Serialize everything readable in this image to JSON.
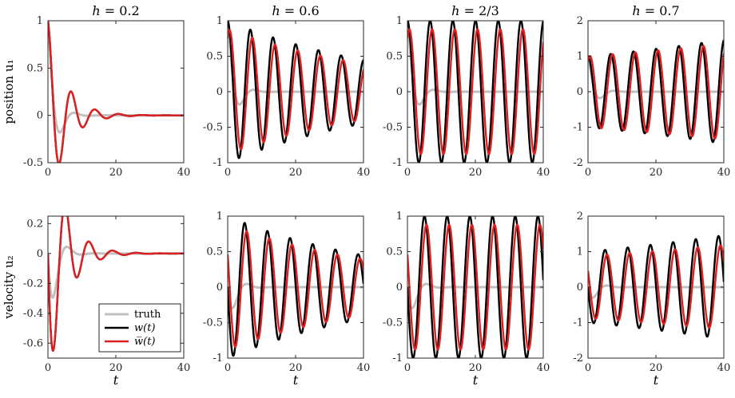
{
  "figure": {
    "row_labels": [
      "position u₁",
      "velocity u₂"
    ],
    "x_label": "t"
  },
  "legend": {
    "placement": "lower-right of bottom-left panel",
    "entries": [
      {
        "label": "truth",
        "color": "#c0c0c0"
      },
      {
        "label": "w(t)",
        "color": "#000000"
      },
      {
        "label": "w̅(t)",
        "color": "#e02020"
      }
    ]
  },
  "chart_data": [
    {
      "type": "line",
      "title": "h = 0.2",
      "xlabel": "",
      "ylabel": "position u₁",
      "xlim": [
        0,
        40
      ],
      "ylim": [
        -0.5,
        1
      ],
      "xticks": [
        0,
        20,
        40
      ],
      "yticks": [
        -0.5,
        0,
        0.5,
        1
      ],
      "yticklabels": [
        "-0.5",
        "0",
        "0.5",
        "1"
      ],
      "series": [
        {
          "name": "truth",
          "color": "#c0c0c0",
          "model": {
            "amp": 1.0,
            "decay": 0.45,
            "omega": 0.75,
            "phase": 0.0,
            "kind": "cos"
          }
        },
        {
          "name": "w(t)",
          "color": "#000000",
          "model": {
            "amp": 1.0,
            "decay": 0.2,
            "omega": 0.9,
            "phase": 0.0,
            "kind": "cos"
          }
        },
        {
          "name": "w̅(t)",
          "color": "#e02020",
          "model": {
            "amp": 1.0,
            "decay": 0.2,
            "omega": 0.9,
            "phase": 0.0,
            "kind": "cos"
          }
        }
      ]
    },
    {
      "type": "line",
      "title": "h = 0.6",
      "xlabel": "",
      "ylabel": "",
      "xlim": [
        0,
        40
      ],
      "ylim": [
        -1,
        1
      ],
      "xticks": [
        0,
        20,
        40
      ],
      "yticks": [
        -1,
        -0.5,
        0,
        0.5,
        1
      ],
      "yticklabels": [
        "-1",
        "-0.5",
        "0",
        "0.5",
        "1"
      ],
      "series": [
        {
          "name": "truth",
          "color": "#c0c0c0",
          "model": {
            "amp": 1.0,
            "decay": 0.45,
            "omega": 0.75,
            "phase": 0.0,
            "kind": "cos"
          }
        },
        {
          "name": "w(t)",
          "color": "#000000",
          "model": {
            "amp": 1.0,
            "decay": 0.02,
            "omega": 0.94,
            "phase": 0.0,
            "kind": "cos"
          }
        },
        {
          "name": "w̅(t)",
          "color": "#e02020",
          "model": {
            "amp": 1.0,
            "decay": 0.02,
            "omega": 0.94,
            "phase": 0.55,
            "kind": "cos",
            "scale": 0.88
          }
        }
      ]
    },
    {
      "type": "line",
      "title": "h = 2/3",
      "xlabel": "",
      "ylabel": "",
      "xlim": [
        0,
        40
      ],
      "ylim": [
        -1,
        1
      ],
      "xticks": [
        0,
        20,
        40
      ],
      "yticks": [
        -1,
        -0.5,
        0,
        0.5,
        1
      ],
      "yticklabels": [
        "-1",
        "-0.5",
        "0",
        "0.5",
        "1"
      ],
      "series": [
        {
          "name": "truth",
          "color": "#c0c0c0",
          "model": {
            "amp": 1.0,
            "decay": 0.45,
            "omega": 0.75,
            "phase": 0.0,
            "kind": "cos"
          }
        },
        {
          "name": "w(t)",
          "color": "#000000",
          "model": {
            "amp": 1.0,
            "decay": 0.0,
            "omega": 0.94,
            "phase": 0.0,
            "kind": "cos"
          }
        },
        {
          "name": "w̅(t)",
          "color": "#e02020",
          "model": {
            "amp": 0.88,
            "decay": 0.0,
            "omega": 0.94,
            "phase": 0.55,
            "kind": "cos",
            "start": 1.0
          }
        }
      ]
    },
    {
      "type": "line",
      "title": "h = 0.7",
      "xlabel": "",
      "ylabel": "",
      "xlim": [
        0,
        40
      ],
      "ylim": [
        -2,
        2
      ],
      "xticks": [
        0,
        20,
        40
      ],
      "yticks": [
        -2,
        -1,
        0,
        1,
        2
      ],
      "yticklabels": [
        "-2",
        "-1",
        "0",
        "1",
        "2"
      ],
      "series": [
        {
          "name": "truth",
          "color": "#c0c0c0",
          "model": {
            "amp": 1.0,
            "decay": 0.45,
            "omega": 0.75,
            "phase": 0.0,
            "kind": "cos"
          }
        },
        {
          "name": "w(t)",
          "color": "#000000",
          "model": {
            "amp": 1.0,
            "decay": -0.0095,
            "omega": 0.94,
            "phase": 0.0,
            "kind": "cos"
          }
        },
        {
          "name": "w̅(t)",
          "color": "#e02020",
          "model": {
            "amp": 1.0,
            "decay": -0.0075,
            "omega": 0.94,
            "phase": 0.55,
            "kind": "cos",
            "start": 1.0
          }
        }
      ]
    },
    {
      "type": "line",
      "title": "",
      "xlabel": "t",
      "ylabel": "velocity u₂",
      "xlim": [
        0,
        40
      ],
      "ylim": [
        -0.7,
        0.25
      ],
      "xticks": [
        0,
        20,
        40
      ],
      "yticks": [
        -0.6,
        -0.4,
        -0.2,
        0,
        0.2
      ],
      "yticklabels": [
        "-0.6",
        "-0.4",
        "-0.2",
        "0",
        "0.2"
      ],
      "series": [
        {
          "name": "truth",
          "color": "#c0c0c0",
          "model": {
            "amp": 0.64,
            "decay": 0.45,
            "omega": 0.75,
            "phase": 0.0,
            "kind": "sin"
          }
        },
        {
          "name": "w(t)",
          "color": "#000000",
          "model": {
            "amp": 0.9,
            "decay": 0.2,
            "omega": 0.9,
            "phase": 0.0,
            "kind": "sin"
          }
        },
        {
          "name": "w̅(t)",
          "color": "#e02020",
          "model": {
            "amp": 0.9,
            "decay": 0.2,
            "omega": 0.9,
            "phase": 0.0,
            "kind": "sin"
          }
        }
      ]
    },
    {
      "type": "line",
      "title": "",
      "xlabel": "t",
      "ylabel": "",
      "xlim": [
        0,
        40
      ],
      "ylim": [
        -1,
        1
      ],
      "xticks": [
        0,
        20,
        40
      ],
      "yticks": [
        -1,
        -0.5,
        0,
        0.5,
        1
      ],
      "yticklabels": [
        "-1",
        "-0.5",
        "0",
        "0.5",
        "1"
      ],
      "series": [
        {
          "name": "truth",
          "color": "#c0c0c0",
          "model": {
            "amp": 0.64,
            "decay": 0.45,
            "omega": 0.75,
            "phase": 0.0,
            "kind": "sin"
          }
        },
        {
          "name": "w(t)",
          "color": "#000000",
          "model": {
            "amp": 1.0,
            "decay": 0.02,
            "omega": 0.94,
            "phase": 0.0,
            "kind": "sin"
          }
        },
        {
          "name": "w̅(t)",
          "color": "#e02020",
          "model": {
            "amp": 0.88,
            "decay": 0.02,
            "omega": 0.94,
            "phase": 0.55,
            "kind": "sin"
          }
        }
      ]
    },
    {
      "type": "line",
      "title": "",
      "xlabel": "t",
      "ylabel": "",
      "xlim": [
        0,
        40
      ],
      "ylim": [
        -1,
        1
      ],
      "xticks": [
        0,
        20,
        40
      ],
      "yticks": [
        -1,
        -0.5,
        0,
        0.5,
        1
      ],
      "yticklabels": [
        "-1",
        "-0.5",
        "0",
        "0.5",
        "1"
      ],
      "series": [
        {
          "name": "truth",
          "color": "#c0c0c0",
          "model": {
            "amp": 0.64,
            "decay": 0.45,
            "omega": 0.75,
            "phase": 0.0,
            "kind": "sin"
          }
        },
        {
          "name": "w(t)",
          "color": "#000000",
          "model": {
            "amp": 1.0,
            "decay": 0.0,
            "omega": 0.94,
            "phase": 0.0,
            "kind": "sin"
          }
        },
        {
          "name": "w̅(t)",
          "color": "#e02020",
          "model": {
            "amp": 0.88,
            "decay": 0.0,
            "omega": 0.94,
            "phase": 0.55,
            "kind": "sin"
          }
        }
      ]
    },
    {
      "type": "line",
      "title": "",
      "xlabel": "t",
      "ylabel": "",
      "xlim": [
        0,
        40
      ],
      "ylim": [
        -2,
        2
      ],
      "xticks": [
        0,
        20,
        40
      ],
      "yticks": [
        -2,
        -1,
        0,
        1,
        2
      ],
      "yticklabels": [
        "-2",
        "-1",
        "0",
        "1",
        "2"
      ],
      "series": [
        {
          "name": "truth",
          "color": "#c0c0c0",
          "model": {
            "amp": 0.64,
            "decay": 0.45,
            "omega": 0.75,
            "phase": 0.0,
            "kind": "sin"
          }
        },
        {
          "name": "w(t)",
          "color": "#000000",
          "model": {
            "amp": 1.0,
            "decay": -0.0095,
            "omega": 0.94,
            "phase": 0.0,
            "kind": "sin"
          }
        },
        {
          "name": "w̅(t)",
          "color": "#e02020",
          "model": {
            "amp": 0.88,
            "decay": -0.0075,
            "omega": 0.94,
            "phase": 0.55,
            "kind": "sin"
          }
        }
      ]
    }
  ]
}
